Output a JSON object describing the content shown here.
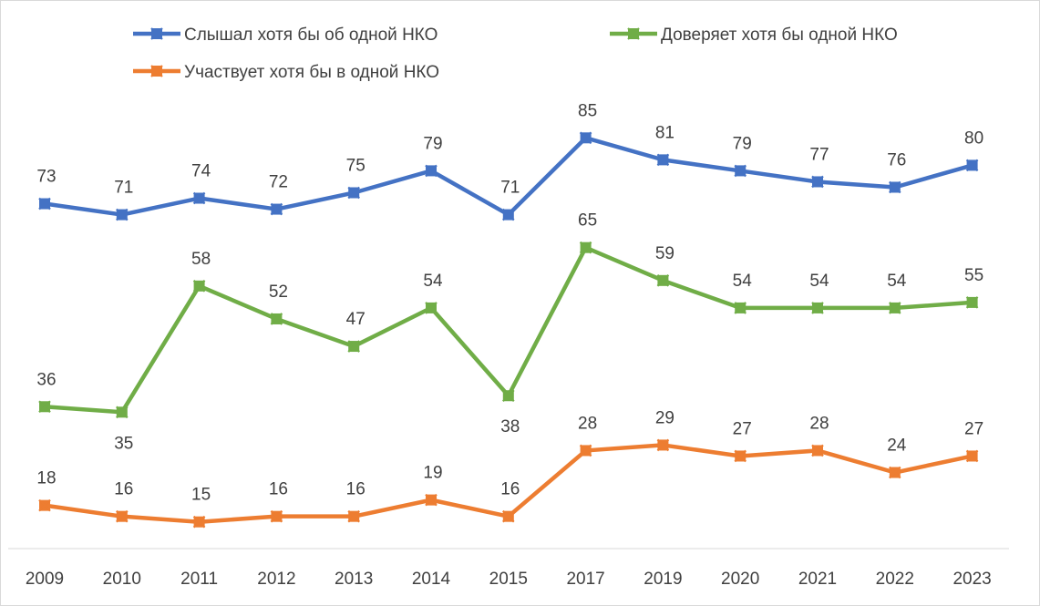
{
  "chart_data": {
    "type": "line",
    "title": "",
    "xlabel": "",
    "ylabel": "",
    "ylim": [
      0,
      100
    ],
    "grid": false,
    "legend_position": "top",
    "categories": [
      "2009",
      "2010",
      "2011",
      "2012",
      "2013",
      "2014",
      "2015",
      "2017",
      "2019",
      "2020",
      "2021",
      "2022",
      "2023"
    ],
    "series": [
      {
        "name": "Слышал хотя бы об одной НКО",
        "color": "#4472C4",
        "values": [
          73,
          71,
          74,
          72,
          75,
          79,
          71,
          85,
          81,
          79,
          77,
          76,
          80
        ]
      },
      {
        "name": "Доверяет хотя бы одной НКО",
        "color": "#70AD47",
        "values": [
          36,
          35,
          58,
          52,
          47,
          54,
          38,
          65,
          59,
          54,
          54,
          54,
          55
        ]
      },
      {
        "name": "Участвует хотя бы в одной НКО",
        "color": "#ED7D31",
        "values": [
          18,
          16,
          15,
          16,
          16,
          19,
          16,
          28,
          29,
          27,
          28,
          24,
          27
        ]
      }
    ]
  }
}
